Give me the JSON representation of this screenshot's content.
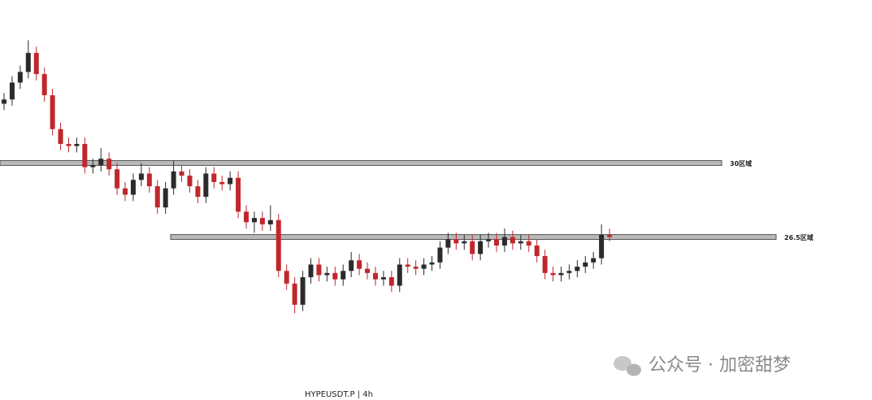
{
  "chart_data": {
    "type": "candlestick",
    "title": "HYPEUSDT.P | 4h",
    "ylim": [
      18.8,
      37.7
    ],
    "up_color": "#2b2b2b",
    "down_color": "#c0272d",
    "levels": [
      {
        "value": 30,
        "label": "30区域"
      },
      {
        "value": 26.5,
        "label": "26.5区域"
      }
    ],
    "candles": [
      [
        32.8,
        33.3,
        32.5,
        33.0
      ],
      [
        33.0,
        34.1,
        32.7,
        33.8
      ],
      [
        33.8,
        34.6,
        33.5,
        34.3
      ],
      [
        34.3,
        35.8,
        34.0,
        35.2
      ],
      [
        35.2,
        35.5,
        33.9,
        34.2
      ],
      [
        34.2,
        34.5,
        32.9,
        33.2
      ],
      [
        33.2,
        33.5,
        31.3,
        31.6
      ],
      [
        31.6,
        31.9,
        30.6,
        30.9
      ],
      [
        30.9,
        31.2,
        30.5,
        30.8
      ],
      [
        30.8,
        31.2,
        30.5,
        30.9
      ],
      [
        30.9,
        31.2,
        29.5,
        29.8
      ],
      [
        29.8,
        30.2,
        29.5,
        29.9
      ],
      [
        29.9,
        30.7,
        29.6,
        30.2
      ],
      [
        30.2,
        30.5,
        29.4,
        29.7
      ],
      [
        29.7,
        30.0,
        28.5,
        28.8
      ],
      [
        28.8,
        29.1,
        28.2,
        28.5
      ],
      [
        28.5,
        29.5,
        28.2,
        29.2
      ],
      [
        29.2,
        30.0,
        28.9,
        29.5
      ],
      [
        29.5,
        29.8,
        28.6,
        28.9
      ],
      [
        28.9,
        29.2,
        27.6,
        27.9
      ],
      [
        27.9,
        29.1,
        27.6,
        28.8
      ],
      [
        28.8,
        30.1,
        28.5,
        29.6
      ],
      [
        29.6,
        29.9,
        29.1,
        29.4
      ],
      [
        29.4,
        29.7,
        28.6,
        28.9
      ],
      [
        28.9,
        29.2,
        28.1,
        28.4
      ],
      [
        28.4,
        29.8,
        28.1,
        29.5
      ],
      [
        29.5,
        29.8,
        28.8,
        29.1
      ],
      [
        29.1,
        29.4,
        28.7,
        29.0
      ],
      [
        29.0,
        29.6,
        28.7,
        29.3
      ],
      [
        29.3,
        29.6,
        27.4,
        27.7
      ],
      [
        27.7,
        28.0,
        26.9,
        27.2
      ],
      [
        27.2,
        27.7,
        26.7,
        27.4
      ],
      [
        27.4,
        27.7,
        26.8,
        27.1
      ],
      [
        27.1,
        28.0,
        26.8,
        27.3
      ],
      [
        27.3,
        27.6,
        24.6,
        24.9
      ],
      [
        24.9,
        25.2,
        24.0,
        24.3
      ],
      [
        24.3,
        24.6,
        22.9,
        23.3
      ],
      [
        23.3,
        24.9,
        23.0,
        24.6
      ],
      [
        24.6,
        25.5,
        24.3,
        25.2
      ],
      [
        25.2,
        25.5,
        24.4,
        24.7
      ],
      [
        24.7,
        25.1,
        24.4,
        24.8
      ],
      [
        24.8,
        25.1,
        24.2,
        24.5
      ],
      [
        24.5,
        25.2,
        24.2,
        24.9
      ],
      [
        24.9,
        25.8,
        24.6,
        25.4
      ],
      [
        25.4,
        25.7,
        24.7,
        25.0
      ],
      [
        25.0,
        25.3,
        24.5,
        24.8
      ],
      [
        24.8,
        25.1,
        24.2,
        24.5
      ],
      [
        24.5,
        24.9,
        24.2,
        24.6
      ],
      [
        24.6,
        24.9,
        23.9,
        24.2
      ],
      [
        24.2,
        25.5,
        23.9,
        25.2
      ],
      [
        25.2,
        25.5,
        24.8,
        25.1
      ],
      [
        25.1,
        25.4,
        24.7,
        25.0
      ],
      [
        25.0,
        25.5,
        24.7,
        25.2
      ],
      [
        25.2,
        25.6,
        24.9,
        25.3
      ],
      [
        25.3,
        26.3,
        25.0,
        26.0
      ],
      [
        26.0,
        26.7,
        25.7,
        26.4
      ],
      [
        26.4,
        26.7,
        25.9,
        26.2
      ],
      [
        26.2,
        26.6,
        25.9,
        26.3
      ],
      [
        26.3,
        26.6,
        25.4,
        25.7
      ],
      [
        25.7,
        26.6,
        25.4,
        26.3
      ],
      [
        26.3,
        26.7,
        26.0,
        26.4
      ],
      [
        26.4,
        26.7,
        25.8,
        26.1
      ],
      [
        26.1,
        26.9,
        25.8,
        26.5
      ],
      [
        26.5,
        26.8,
        25.9,
        26.2
      ],
      [
        26.2,
        26.6,
        25.9,
        26.3
      ],
      [
        26.3,
        26.6,
        25.8,
        26.1
      ],
      [
        26.1,
        26.4,
        25.3,
        25.6
      ],
      [
        25.6,
        25.9,
        24.5,
        24.8
      ],
      [
        24.8,
        25.1,
        24.4,
        24.7
      ],
      [
        24.7,
        25.1,
        24.4,
        24.8
      ],
      [
        24.8,
        25.2,
        24.5,
        24.9
      ],
      [
        24.9,
        25.4,
        24.6,
        25.1
      ],
      [
        25.1,
        25.6,
        24.8,
        25.3
      ],
      [
        25.3,
        25.8,
        25.0,
        25.5
      ],
      [
        25.5,
        27.1,
        25.2,
        26.6
      ],
      [
        26.6,
        26.9,
        26.3,
        26.5
      ]
    ]
  },
  "watermark": "公众号 · 加密甜梦"
}
